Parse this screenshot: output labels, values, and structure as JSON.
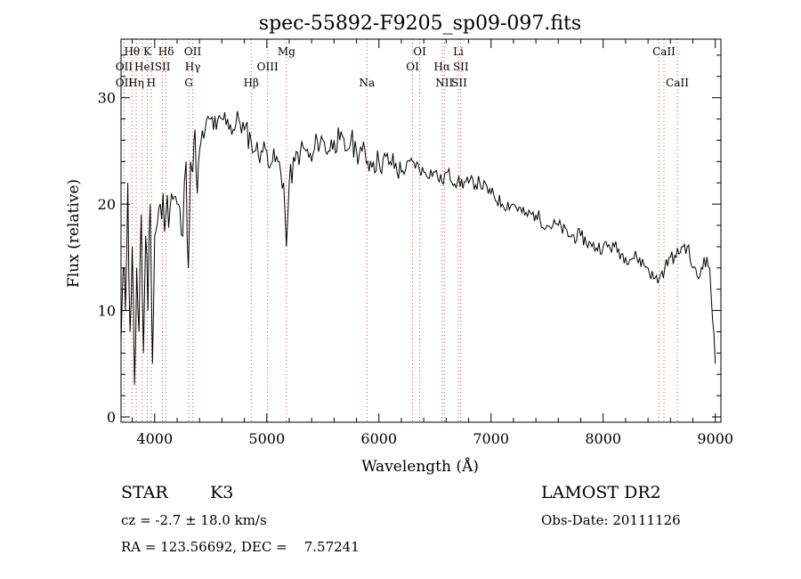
{
  "chart_data": {
    "type": "line",
    "title": "spec-55892-F9205_sp09-097.fits",
    "xlabel": "Wavelength (Å)",
    "ylabel": "Flux (relative)",
    "xlim": [
      3700,
      9050
    ],
    "ylim": [
      -0.5,
      35.5
    ],
    "x_ticks": [
      "4000",
      "5000",
      "6000",
      "7000",
      "8000",
      "9000"
    ],
    "y_ticks": [
      "0",
      "10",
      "20",
      "30"
    ],
    "grid": false,
    "series": [
      {
        "x": [
          3700,
          3720,
          3740,
          3760,
          3780,
          3800,
          3820,
          3840,
          3860,
          3880,
          3900,
          3920,
          3940,
          3960,
          3980,
          4000,
          4050,
          4100,
          4150,
          4200,
          4250,
          4280,
          4300,
          4320,
          4340,
          4360,
          4380,
          4400,
          4450,
          4500,
          4550,
          4600,
          4650,
          4700,
          4750,
          4800,
          4860,
          4900,
          4950,
          5000,
          5050,
          5100,
          5150,
          5175,
          5200,
          5250,
          5300,
          5350,
          5400,
          5450,
          5500,
          5550,
          5600,
          5650,
          5700,
          5750,
          5800,
          5850,
          5900,
          5950,
          6000,
          6100,
          6200,
          6300,
          6400,
          6500,
          6563,
          6600,
          6700,
          6800,
          6900,
          7000,
          7100,
          7200,
          7300,
          7400,
          7500,
          7600,
          7700,
          7800,
          7900,
          8000,
          8100,
          8200,
          8300,
          8400,
          8450,
          8500,
          8550,
          8600,
          8650,
          8700,
          8750,
          8800,
          8850,
          8900,
          8950,
          9000
        ],
        "y": [
          7,
          14,
          10,
          22,
          8,
          16,
          3,
          14,
          8,
          19,
          6,
          17,
          10,
          20,
          5,
          17,
          20,
          19,
          21,
          20,
          17,
          24,
          14,
          24,
          23,
          27,
          21,
          25,
          27,
          28,
          27,
          28,
          28,
          27,
          28,
          27,
          26,
          25,
          25,
          25,
          24,
          24,
          22,
          16,
          22,
          24,
          25,
          25,
          24,
          26,
          26,
          25,
          26,
          26,
          25,
          26,
          25,
          25,
          24,
          24,
          24,
          24,
          23,
          24,
          23,
          23,
          22,
          23,
          22,
          22,
          22,
          21,
          20,
          20,
          19,
          19,
          18,
          18,
          17,
          17,
          16,
          16,
          16,
          15,
          15,
          14,
          13,
          13,
          14,
          15,
          15,
          16,
          16,
          14,
          13,
          15,
          14,
          5
        ]
      }
    ],
    "line_markers": [
      {
        "name": "Hθ",
        "wave": 3798,
        "row": 1
      },
      {
        "name": "K",
        "wave": 3934,
        "row": 1
      },
      {
        "name": "Hδ",
        "wave": 4102,
        "row": 1
      },
      {
        "name": "OII",
        "wave": 3727,
        "row": 2
      },
      {
        "name": "He",
        "wave": 3889,
        "row": 2
      },
      {
        "name": "I",
        "wave": 3980,
        "row": 2
      },
      {
        "name": "SII",
        "wave": 4070,
        "row": 2
      },
      {
        "name": "OII",
        "wave": 3727,
        "row": 3
      },
      {
        "name": "Hη",
        "wave": 3835,
        "row": 3
      },
      {
        "name": "H",
        "wave": 3969,
        "row": 3
      },
      {
        "name": "OII",
        "wave": 4340,
        "row": 1
      },
      {
        "name": "Hγ",
        "wave": 4340,
        "row": 2
      },
      {
        "name": "G",
        "wave": 4304,
        "row": 3
      },
      {
        "name": "Mg",
        "wave": 5175,
        "row": 1
      },
      {
        "name": "OIII",
        "wave": 5007,
        "row": 2
      },
      {
        "name": "Hβ",
        "wave": 4861,
        "row": 3
      },
      {
        "name": "Na",
        "wave": 5893,
        "row": 3
      },
      {
        "name": "OI",
        "wave": 6364,
        "row": 1
      },
      {
        "name": "OI",
        "wave": 6300,
        "row": 2
      },
      {
        "name": "Li",
        "wave": 6708,
        "row": 1
      },
      {
        "name": "Hα",
        "wave": 6563,
        "row": 2
      },
      {
        "name": "SII",
        "wave": 6731,
        "row": 2
      },
      {
        "name": "NII",
        "wave": 6583,
        "row": 3
      },
      {
        "name": "SII",
        "wave": 6716,
        "row": 3
      },
      {
        "name": "CaII",
        "wave": 8542,
        "row": 1
      },
      {
        "name": "CaII",
        "wave": 8662,
        "row": 3
      }
    ],
    "marker_lines": [
      3727,
      3798,
      3835,
      3889,
      3934,
      3969,
      4070,
      4102,
      4304,
      4340,
      4861,
      5007,
      5175,
      5893,
      6300,
      6364,
      6563,
      6583,
      6708,
      6731,
      8498,
      8542,
      8662
    ]
  },
  "info": {
    "object_class": "STAR",
    "subclass": "K3",
    "survey": "LAMOST DR2",
    "redshift": "cz = -2.7 ± 18.0 km/s",
    "obs_date": "Obs-Date: 20111126",
    "coords": "RA = 123.56692, DEC =    7.57241"
  },
  "colors": {
    "spectrum": "#000000",
    "marker_line": "#c0504d",
    "axes": "#000000"
  }
}
